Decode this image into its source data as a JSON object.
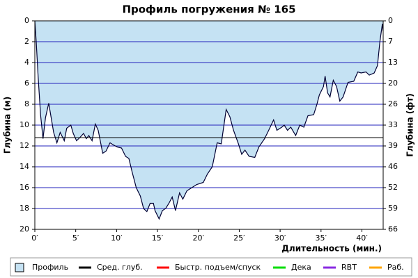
{
  "chart_data": {
    "type": "area",
    "title": "Профиль погружения № 165",
    "y_label": "Глубина (м)",
    "y2_label": "Глубина (фт)",
    "x_label": "Длительность (мин.)",
    "x": [
      0,
      0.17,
      0.4,
      0.7,
      1.0,
      1.3,
      1.7,
      2.0,
      2.3,
      2.7,
      3.1,
      3.6,
      3.9,
      4.4,
      4.7,
      5.1,
      5.5,
      5.96,
      6.3,
      6.6,
      7.0,
      7.4,
      7.75,
      8.3,
      8.7,
      9.2,
      9.6,
      10.1,
      10.6,
      11.1,
      11.5,
      11.9,
      12.4,
      12.9,
      13.3,
      13.7,
      14.1,
      14.5,
      14.7,
      15.2,
      15.6,
      16.0,
      16.4,
      16.8,
      17.2,
      17.7,
      18.1,
      18.6,
      19.2,
      19.8,
      20.6,
      21.1,
      21.7,
      22.3,
      22.8,
      23.4,
      23.85,
      24.3,
      24.9,
      25.3,
      25.7,
      26.2,
      26.9,
      27.4,
      28.1,
      28.6,
      29.2,
      29.6,
      30.2,
      30.5,
      30.9,
      31.3,
      31.9,
      32.4,
      32.9,
      33.4,
      34.1,
      34.5,
      34.8,
      35.3,
      35.5,
      35.8,
      36.1,
      36.5,
      36.9,
      37.3,
      37.7,
      38.3,
      39.0,
      39.5,
      39.9,
      40.5,
      40.9,
      41.5,
      41.9,
      42.2,
      42.5,
      42.6
    ],
    "series": [
      {
        "name": "Профиль",
        "color": "#c5e2f3",
        "line_color": "#000033",
        "values": [
          0,
          2,
          5.3,
          9,
          11.3,
          9.3,
          7.9,
          9.3,
          10.7,
          11.7,
          10.7,
          11.5,
          10.3,
          10.0,
          10.8,
          11.5,
          11.2,
          10.8,
          11.3,
          11,
          11.5,
          9.9,
          10.5,
          12.7,
          12.5,
          11.7,
          11.9,
          12.1,
          12.2,
          13,
          13.2,
          14.5,
          16,
          16.8,
          18,
          18.3,
          17.5,
          17.5,
          18.2,
          19,
          18.2,
          18,
          17.5,
          16.9,
          18.2,
          16.5,
          17.1,
          16.3,
          16,
          15.7,
          15.5,
          14.7,
          14,
          11.7,
          11.8,
          8.5,
          9.2,
          10.5,
          11.8,
          12.8,
          12.4,
          13,
          13.1,
          12.1,
          11.3,
          10.5,
          9.5,
          10.5,
          10.2,
          10,
          10.5,
          10.2,
          11,
          10,
          10.2,
          9.1,
          9,
          8,
          7.1,
          6.3,
          5.3,
          6.9,
          7.3,
          5.7,
          6.3,
          7.7,
          7.3,
          5.9,
          5.8,
          4.9,
          5,
          4.9,
          5.2,
          5,
          4.3,
          2,
          0.3,
          1
        ]
      }
    ],
    "avg_depth": 11.2,
    "legend": [
      {
        "name": "Профиль",
        "color": "#c5e2f3"
      },
      {
        "name": "Сред. глуб.",
        "color": "#000000"
      },
      {
        "name": "Быстр. подъем/спуск",
        "color": "#ff0000"
      },
      {
        "name": "Дека",
        "color": "#00dd00"
      },
      {
        "name": "RBT",
        "color": "#8a2be2"
      },
      {
        "name": "Раб.",
        "color": "#ffa500"
      }
    ],
    "xlim": [
      0,
      42.6
    ],
    "xticks": [
      {
        "value": 0,
        "label": "0′"
      },
      {
        "value": 5,
        "label": "5′"
      },
      {
        "value": 10,
        "label": "10′"
      },
      {
        "value": 15,
        "label": "15′"
      },
      {
        "value": 20,
        "label": "20′"
      },
      {
        "value": 25,
        "label": "25′"
      },
      {
        "value": 30,
        "label": "30′"
      },
      {
        "value": 35,
        "label": "35′"
      },
      {
        "value": 40,
        "label": "40′"
      }
    ],
    "ylim": [
      0,
      20
    ],
    "yticks": [
      0,
      2,
      4,
      6,
      8,
      10,
      12,
      14,
      16,
      18,
      20
    ],
    "y2lim": [
      0,
      65.62
    ],
    "y2ticks": [
      0,
      {
        "value": 6.56,
        "label": "7"
      },
      {
        "value": 13.12,
        "label": "13"
      },
      {
        "value": 19.69,
        "label": "20"
      },
      {
        "value": 26.25,
        "label": "26"
      },
      {
        "value": 32.81,
        "label": "33"
      },
      {
        "value": 39.37,
        "label": "39"
      },
      {
        "value": 45.93,
        "label": "46"
      },
      {
        "value": 52.49,
        "label": "52"
      },
      {
        "value": 59.06,
        "label": "59"
      },
      {
        "value": 65.62,
        "label": "66"
      }
    ],
    "grid": true,
    "grid_color": "#2222bb",
    "inverted": true
  }
}
